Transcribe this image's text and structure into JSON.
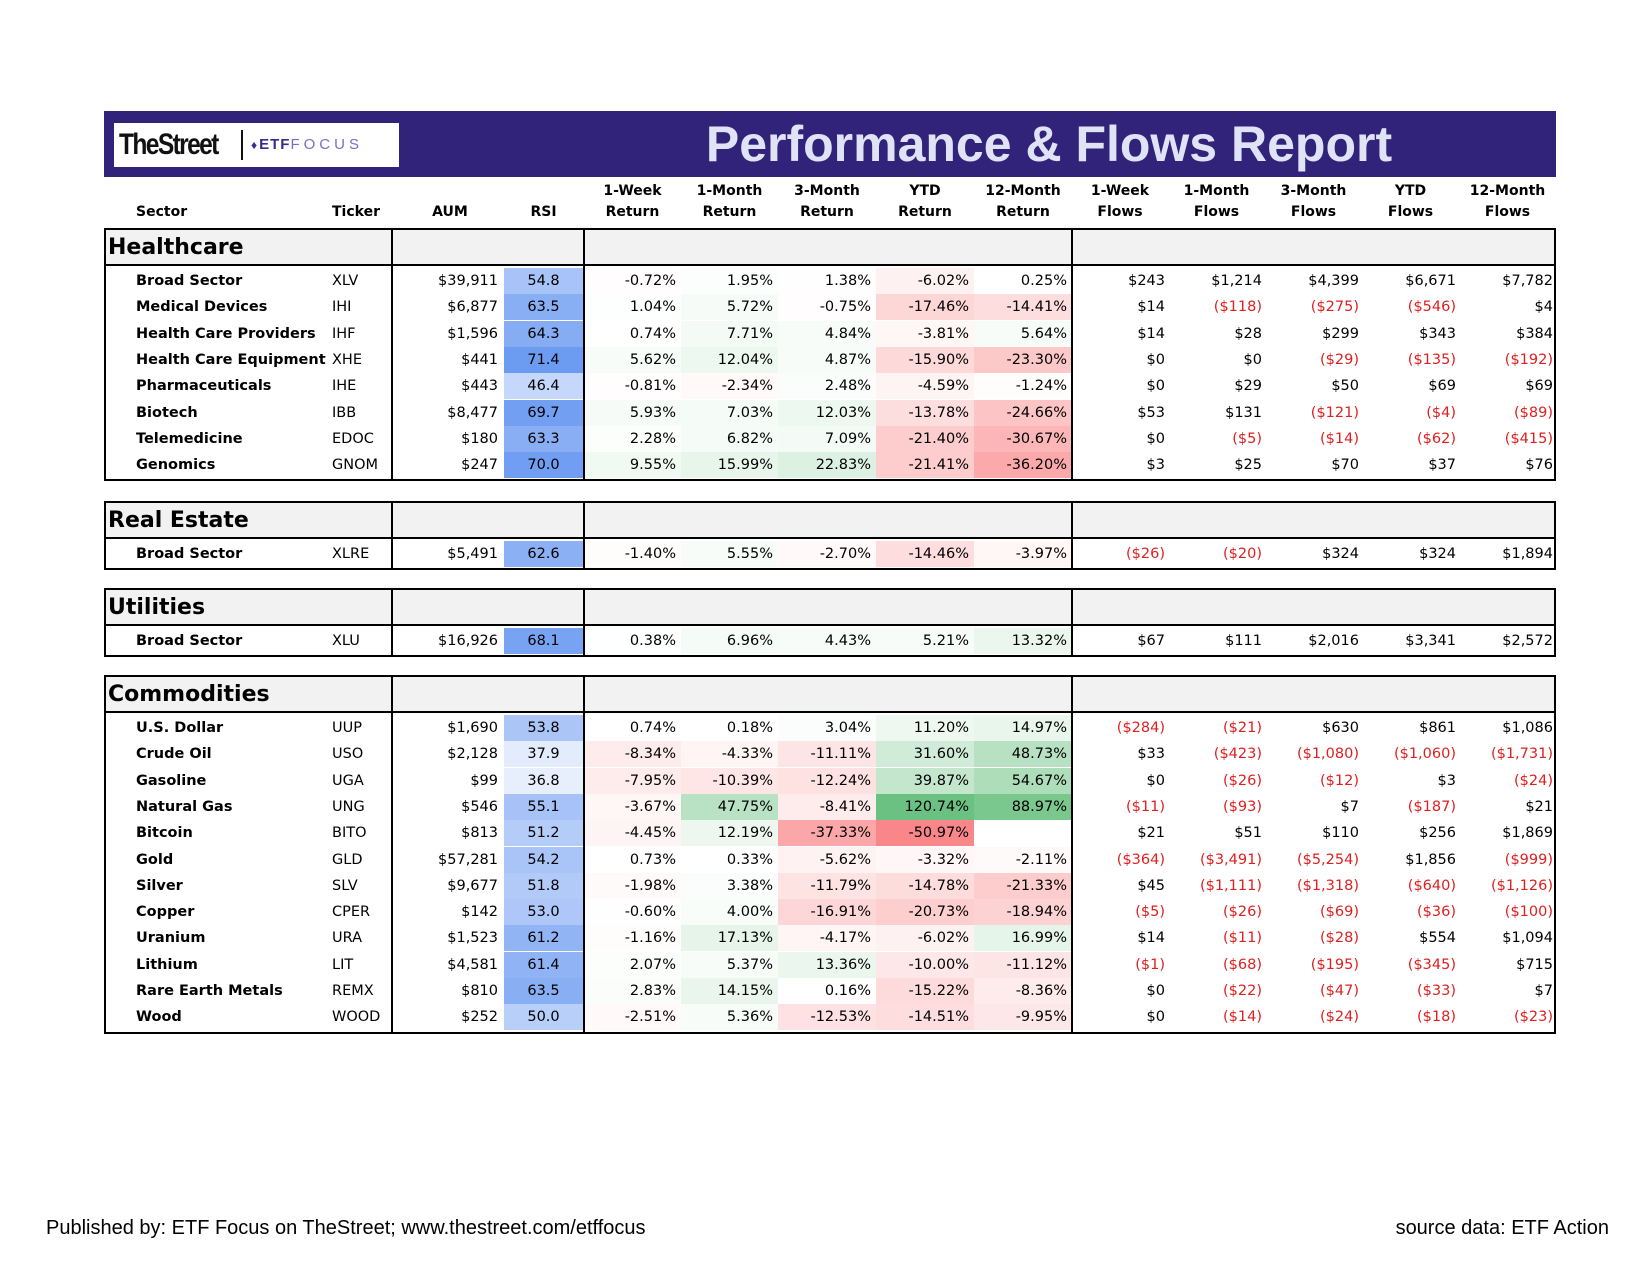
{
  "banner": {
    "logo_main": "TheStreet",
    "logo_etf": "ETF",
    "logo_focus": "FOCUS",
    "title": "Performance & Flows Report"
  },
  "headers": [
    {
      "line1": "",
      "line2": "Sector"
    },
    {
      "line1": "",
      "line2": "Ticker"
    },
    {
      "line1": "",
      "line2": "AUM"
    },
    {
      "line1": "",
      "line2": "RSI"
    },
    {
      "line1": "1-Week",
      "line2": "Return"
    },
    {
      "line1": "1-Month",
      "line2": "Return"
    },
    {
      "line1": "3-Month",
      "line2": "Return"
    },
    {
      "line1": "YTD",
      "line2": "Return"
    },
    {
      "line1": "12-Month",
      "line2": "Return"
    },
    {
      "line1": "1-Week",
      "line2": "Flows"
    },
    {
      "line1": "1-Month",
      "line2": "Flows"
    },
    {
      "line1": "3-Month",
      "line2": "Flows"
    },
    {
      "line1": "YTD",
      "line2": "Flows"
    },
    {
      "line1": "12-Month",
      "line2": "Flows"
    }
  ],
  "sections": [
    {
      "name": "Healthcare",
      "rows": [
        {
          "sector": "Broad Sector",
          "ticker": "XLV",
          "aum": "$39,911",
          "rsi": "54.8",
          "returns": [
            "-0.72%",
            "1.95%",
            "1.38%",
            "-6.02%",
            "0.25%"
          ],
          "flows": [
            "$243",
            "$1,214",
            "$4,399",
            "$6,671",
            "$7,782"
          ]
        },
        {
          "sector": "Medical Devices",
          "ticker": "IHI",
          "aum": "$6,877",
          "rsi": "63.5",
          "returns": [
            "1.04%",
            "5.72%",
            "-0.75%",
            "-17.46%",
            "-14.41%"
          ],
          "flows": [
            "$14",
            "($118)",
            "($275)",
            "($546)",
            "$4"
          ]
        },
        {
          "sector": "Health Care Providers",
          "ticker": "IHF",
          "aum": "$1,596",
          "rsi": "64.3",
          "returns": [
            "0.74%",
            "7.71%",
            "4.84%",
            "-3.81%",
            "5.64%"
          ],
          "flows": [
            "$14",
            "$28",
            "$299",
            "$343",
            "$384"
          ]
        },
        {
          "sector": "Health Care Equipment",
          "ticker": "XHE",
          "aum": "$441",
          "rsi": "71.4",
          "returns": [
            "5.62%",
            "12.04%",
            "4.87%",
            "-15.90%",
            "-23.30%"
          ],
          "flows": [
            "$0",
            "$0",
            "($29)",
            "($135)",
            "($192)"
          ]
        },
        {
          "sector": "Pharmaceuticals",
          "ticker": "IHE",
          "aum": "$443",
          "rsi": "46.4",
          "returns": [
            "-0.81%",
            "-2.34%",
            "2.48%",
            "-4.59%",
            "-1.24%"
          ],
          "flows": [
            "$0",
            "$29",
            "$50",
            "$69",
            "$69"
          ]
        },
        {
          "sector": "Biotech",
          "ticker": "IBB",
          "aum": "$8,477",
          "rsi": "69.7",
          "returns": [
            "5.93%",
            "7.03%",
            "12.03%",
            "-13.78%",
            "-24.66%"
          ],
          "flows": [
            "$53",
            "$131",
            "($121)",
            "($4)",
            "($89)"
          ]
        },
        {
          "sector": "Telemedicine",
          "ticker": "EDOC",
          "aum": "$180",
          "rsi": "63.3",
          "returns": [
            "2.28%",
            "6.82%",
            "7.09%",
            "-21.40%",
            "-30.67%"
          ],
          "flows": [
            "$0",
            "($5)",
            "($14)",
            "($62)",
            "($415)"
          ]
        },
        {
          "sector": "Genomics",
          "ticker": "GNOM",
          "aum": "$247",
          "rsi": "70.0",
          "returns": [
            "9.55%",
            "15.99%",
            "22.83%",
            "-21.41%",
            "-36.20%"
          ],
          "flows": [
            "$3",
            "$25",
            "$70",
            "$37",
            "$76"
          ]
        }
      ]
    },
    {
      "name": "Real Estate",
      "rows": [
        {
          "sector": "Broad Sector",
          "ticker": "XLRE",
          "aum": "$5,491",
          "rsi": "62.6",
          "returns": [
            "-1.40%",
            "5.55%",
            "-2.70%",
            "-14.46%",
            "-3.97%"
          ],
          "flows": [
            "($26)",
            "($20)",
            "$324",
            "$324",
            "$1,894"
          ]
        }
      ]
    },
    {
      "name": "Utilities",
      "rows": [
        {
          "sector": "Broad Sector",
          "ticker": "XLU",
          "aum": "$16,926",
          "rsi": "68.1",
          "returns": [
            "0.38%",
            "6.96%",
            "4.43%",
            "5.21%",
            "13.32%"
          ],
          "flows": [
            "$67",
            "$111",
            "$2,016",
            "$3,341",
            "$2,572"
          ]
        }
      ]
    },
    {
      "name": "Commodities",
      "rows": [
        {
          "sector": "U.S. Dollar",
          "ticker": "UUP",
          "aum": "$1,690",
          "rsi": "53.8",
          "returns": [
            "0.74%",
            "0.18%",
            "3.04%",
            "11.20%",
            "14.97%"
          ],
          "flows": [
            "($284)",
            "($21)",
            "$630",
            "$861",
            "$1,086"
          ]
        },
        {
          "sector": "Crude Oil",
          "ticker": "USO",
          "aum": "$2,128",
          "rsi": "37.9",
          "returns": [
            "-8.34%",
            "-4.33%",
            "-11.11%",
            "31.60%",
            "48.73%"
          ],
          "flows": [
            "$33",
            "($423)",
            "($1,080)",
            "($1,060)",
            "($1,731)"
          ]
        },
        {
          "sector": "Gasoline",
          "ticker": "UGA",
          "aum": "$99",
          "rsi": "36.8",
          "returns": [
            "-7.95%",
            "-10.39%",
            "-12.24%",
            "39.87%",
            "54.67%"
          ],
          "flows": [
            "$0",
            "($26)",
            "($12)",
            "$3",
            "($24)"
          ]
        },
        {
          "sector": "Natural Gas",
          "ticker": "UNG",
          "aum": "$546",
          "rsi": "55.1",
          "returns": [
            "-3.67%",
            "47.75%",
            "-8.41%",
            "120.74%",
            "88.97%"
          ],
          "flows": [
            "($11)",
            "($93)",
            "$7",
            "($187)",
            "$21"
          ]
        },
        {
          "sector": "Bitcoin",
          "ticker": "BITO",
          "aum": "$813",
          "rsi": "51.2",
          "returns": [
            "-4.45%",
            "12.19%",
            "-37.33%",
            "-50.97%",
            ""
          ],
          "flows": [
            "$21",
            "$51",
            "$110",
            "$256",
            "$1,869"
          ]
        },
        {
          "sector": "Gold",
          "ticker": "GLD",
          "aum": "$57,281",
          "rsi": "54.2",
          "returns": [
            "0.73%",
            "0.33%",
            "-5.62%",
            "-3.32%",
            "-2.11%"
          ],
          "flows": [
            "($364)",
            "($3,491)",
            "($5,254)",
            "$1,856",
            "($999)"
          ]
        },
        {
          "sector": "Silver",
          "ticker": "SLV",
          "aum": "$9,677",
          "rsi": "51.8",
          "returns": [
            "-1.98%",
            "3.38%",
            "-11.79%",
            "-14.78%",
            "-21.33%"
          ],
          "flows": [
            "$45",
            "($1,111)",
            "($1,318)",
            "($640)",
            "($1,126)"
          ]
        },
        {
          "sector": "Copper",
          "ticker": "CPER",
          "aum": "$142",
          "rsi": "53.0",
          "returns": [
            "-0.60%",
            "4.00%",
            "-16.91%",
            "-20.73%",
            "-18.94%"
          ],
          "flows": [
            "($5)",
            "($26)",
            "($69)",
            "($36)",
            "($100)"
          ]
        },
        {
          "sector": "Uranium",
          "ticker": "URA",
          "aum": "$1,523",
          "rsi": "61.2",
          "returns": [
            "-1.16%",
            "17.13%",
            "-4.17%",
            "-6.02%",
            "16.99%"
          ],
          "flows": [
            "$14",
            "($11)",
            "($28)",
            "$554",
            "$1,094"
          ]
        },
        {
          "sector": "Lithium",
          "ticker": "LIT",
          "aum": "$4,581",
          "rsi": "61.4",
          "returns": [
            "2.07%",
            "5.37%",
            "13.36%",
            "-10.00%",
            "-11.12%"
          ],
          "flows": [
            "($1)",
            "($68)",
            "($195)",
            "($345)",
            "$715"
          ]
        },
        {
          "sector": "Rare Earth Metals",
          "ticker": "REMX",
          "aum": "$810",
          "rsi": "63.5",
          "returns": [
            "2.83%",
            "14.15%",
            "0.16%",
            "-15.22%",
            "-8.36%"
          ],
          "flows": [
            "$0",
            "($22)",
            "($47)",
            "($33)",
            "$7"
          ]
        },
        {
          "sector": "Wood",
          "ticker": "WOOD",
          "aum": "$252",
          "rsi": "50.0",
          "returns": [
            "-2.51%",
            "5.36%",
            "-12.53%",
            "-14.51%",
            "-9.95%"
          ],
          "flows": [
            "$0",
            "($14)",
            "($24)",
            "($18)",
            "($23)"
          ]
        }
      ]
    }
  ],
  "footer": {
    "left": "Published by: ETF Focus on TheStreet; www.thestreet.com/etffocus",
    "right": "source data: ETF Action"
  },
  "colors": {
    "banner": "#32237a",
    "banner_title": "#dfe3f5",
    "negative_flow": "#e02020",
    "heat_positive": "#63be7b",
    "heat_negative": "#f8696b",
    "rsi_scale": "#5b8ff0"
  }
}
